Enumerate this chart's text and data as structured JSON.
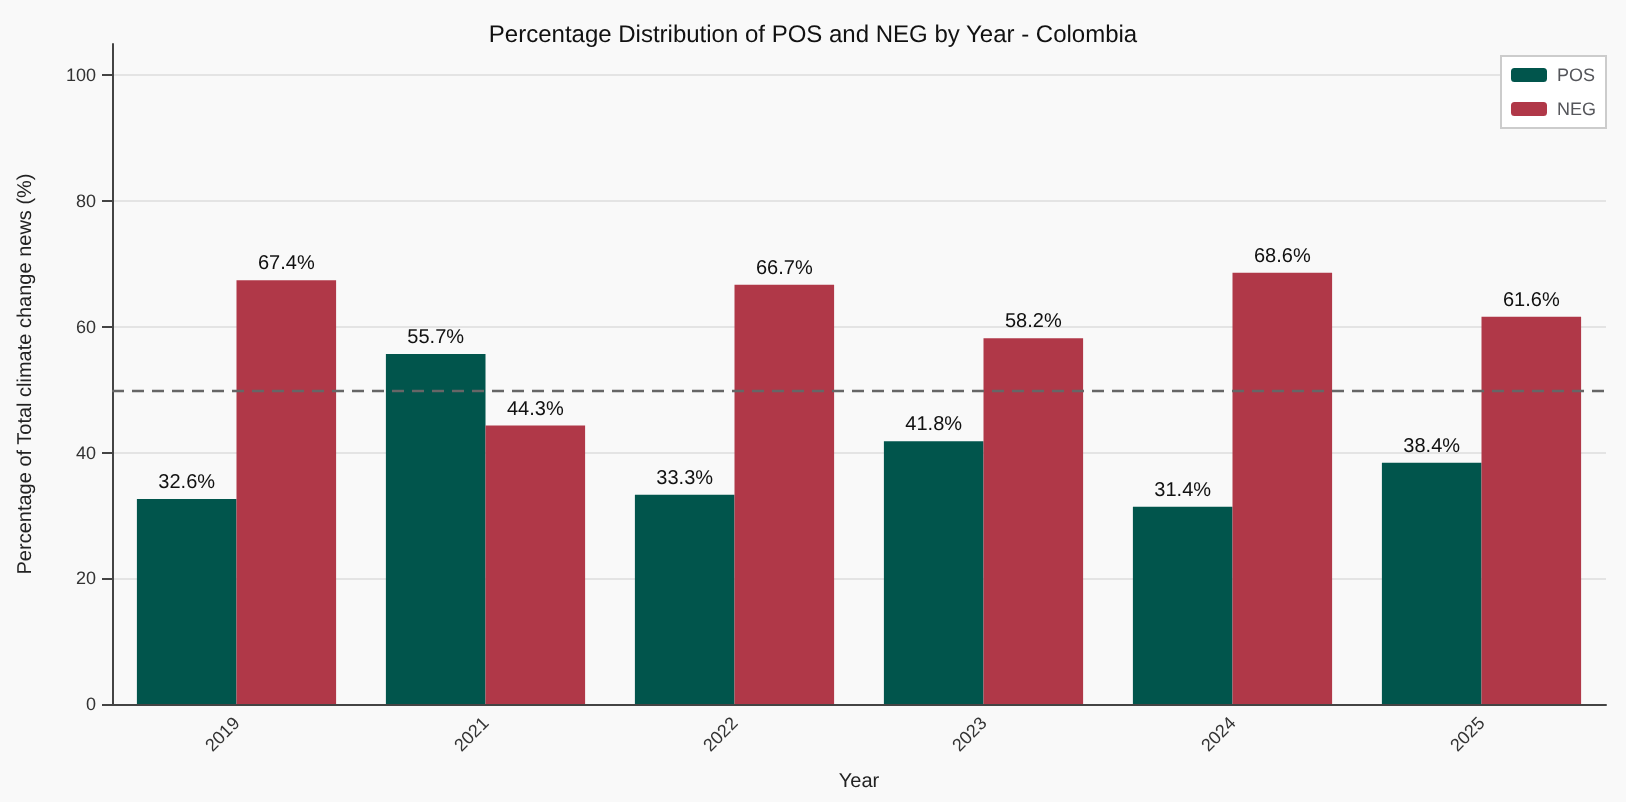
{
  "chart_data": {
    "type": "bar",
    "title": "Percentage Distribution of POS and NEG by Year - Colombia",
    "xlabel": "Year",
    "ylabel": "Percentage of Total climate change news (%)",
    "categories": [
      "2019",
      "2021",
      "2022",
      "2023",
      "2024",
      "2025"
    ],
    "series": [
      {
        "name": "POS",
        "color": "#01554c",
        "values": [
          32.6,
          55.7,
          33.3,
          41.8,
          31.4,
          38.4
        ],
        "value_labels": [
          "32.6%",
          "55.7%",
          "33.3%",
          "41.8%",
          "31.4%",
          "38.4%"
        ]
      },
      {
        "name": "NEG",
        "color": "#b03848",
        "values": [
          67.4,
          44.3,
          66.7,
          58.2,
          68.6,
          61.6
        ],
        "value_labels": [
          "67.4%",
          "44.3%",
          "66.7%",
          "58.2%",
          "68.6%",
          "61.6%"
        ]
      }
    ],
    "ylim": [
      0,
      105
    ],
    "yticks": [
      0,
      20,
      40,
      60,
      80,
      100
    ],
    "grid": "y",
    "legend": "top right",
    "ref_lines": [
      {
        "axis": "y",
        "value": 50,
        "color": "#666666",
        "line_style": "dashed"
      }
    ]
  }
}
